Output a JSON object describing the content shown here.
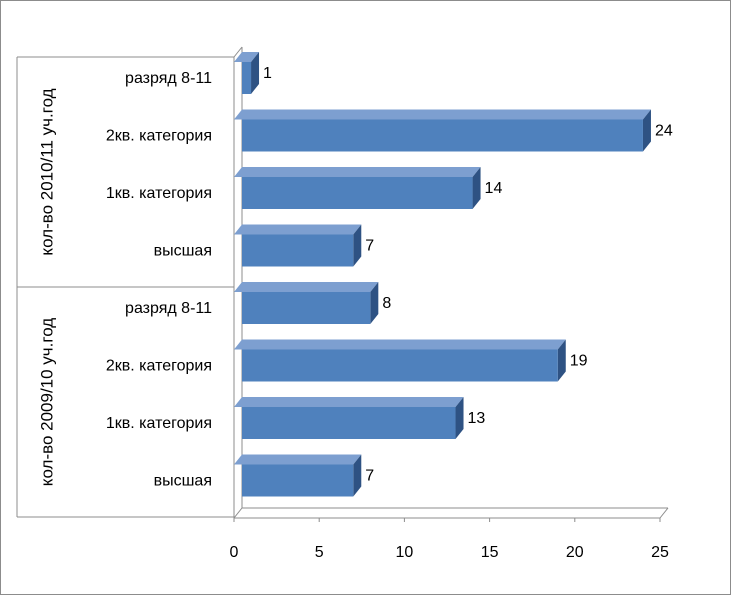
{
  "chart_data": {
    "type": "bar",
    "orientation": "horizontal",
    "style": "3d-clustered",
    "groups": [
      {
        "label": "кол-во 2010/11 уч.год",
        "categories": [
          "разряд 8-11",
          "2кв. категория",
          "1кв. категория",
          "высшая"
        ],
        "values": [
          1,
          24,
          14,
          7
        ]
      },
      {
        "label": "кол-во 2009/10 уч.год",
        "categories": [
          "разряд 8-11",
          "2кв. категория",
          "1кв. категория",
          "высшая"
        ],
        "values": [
          8,
          19,
          13,
          7
        ]
      }
    ],
    "x_ticks": [
      "0",
      "5",
      "10",
      "15",
      "20",
      "25"
    ],
    "xlim": [
      0,
      25
    ],
    "data_labels": true,
    "grid": false,
    "legend": "none",
    "colors": {
      "bar_front": "#4f81bd",
      "bar_top": "#7d9fd0",
      "bar_side": "#2e5283",
      "wall_line": "#8c8c8c"
    }
  }
}
